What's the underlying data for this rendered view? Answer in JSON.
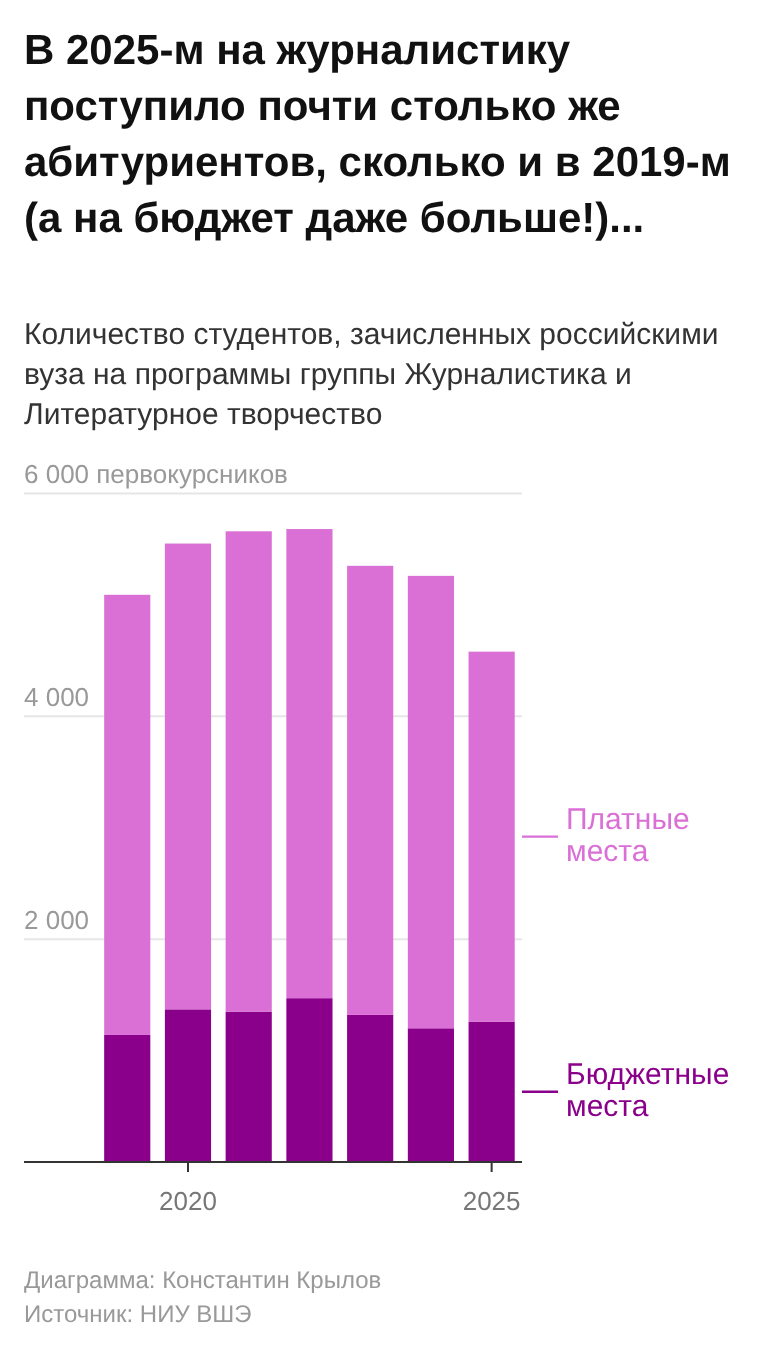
{
  "chart_data": {
    "type": "bar",
    "title": "В 2025-м на журналистику поступило почти столько же абитуриентов, сколько и в 2019-м (а на бюджет даже больше!)...",
    "subtitle": "Количество студентов, зачисленных российскими вуза на программы группы Журналистика и Литературное творчество",
    "x": [
      2019,
      2020,
      2021,
      2022,
      2023,
      2024,
      2025
    ],
    "stacked": true,
    "series": [
      {
        "name": "Бюджетные места",
        "color": "#8b008b",
        "values": [
          1140,
          1370,
          1350,
          1470,
          1320,
          1200,
          1260
        ]
      },
      {
        "name": "Платные места",
        "color": "#da70d6",
        "values": [
          3950,
          4180,
          4310,
          4210,
          4030,
          4060,
          3320
        ]
      }
    ],
    "xlim": [
      2017.3,
      2025.5
    ],
    "xticks": [
      2020,
      2025
    ],
    "ylim": [
      0,
      6000
    ],
    "yticks": [
      {
        "value": 2000,
        "label": "2 000"
      },
      {
        "value": 4000,
        "label": "4 000"
      },
      {
        "value": 6000,
        "label": "6 000 первокурсников"
      }
    ],
    "grid": "y",
    "legend": "right",
    "annotations": [
      "Диаграмма: Константин Крылов",
      "Источник: НИУ ВШЭ"
    ]
  }
}
